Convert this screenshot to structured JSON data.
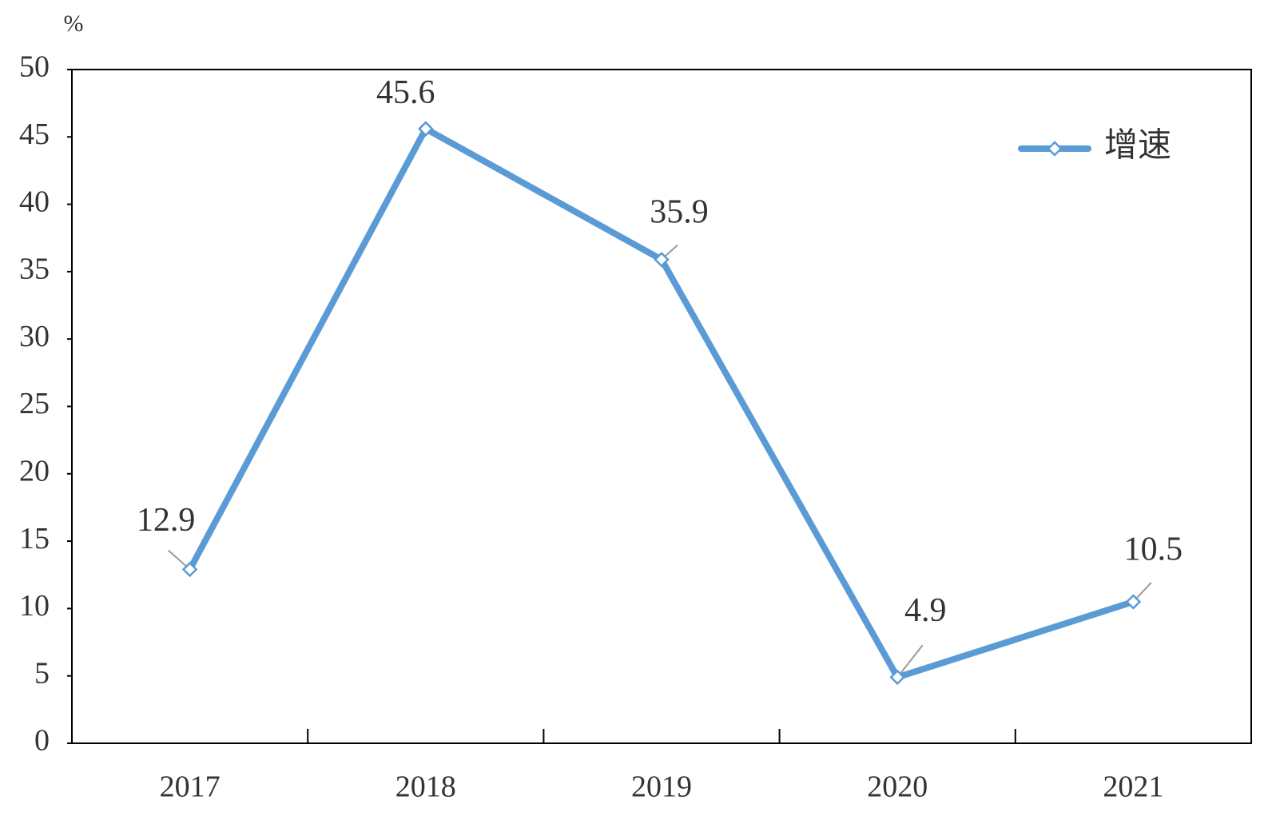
{
  "chart_data": {
    "type": "line",
    "y_unit_label": "%",
    "categories": [
      "2017",
      "2018",
      "2019",
      "2020",
      "2021"
    ],
    "series": [
      {
        "name": "增速",
        "color": "#5b9bd5",
        "values": [
          12.9,
          45.6,
          35.9,
          4.9,
          10.5
        ]
      }
    ],
    "ylim": [
      0,
      50
    ],
    "yticks": [
      0,
      5,
      10,
      15,
      20,
      25,
      30,
      35,
      40,
      45,
      50
    ],
    "legend": "top-right",
    "grid": false
  }
}
